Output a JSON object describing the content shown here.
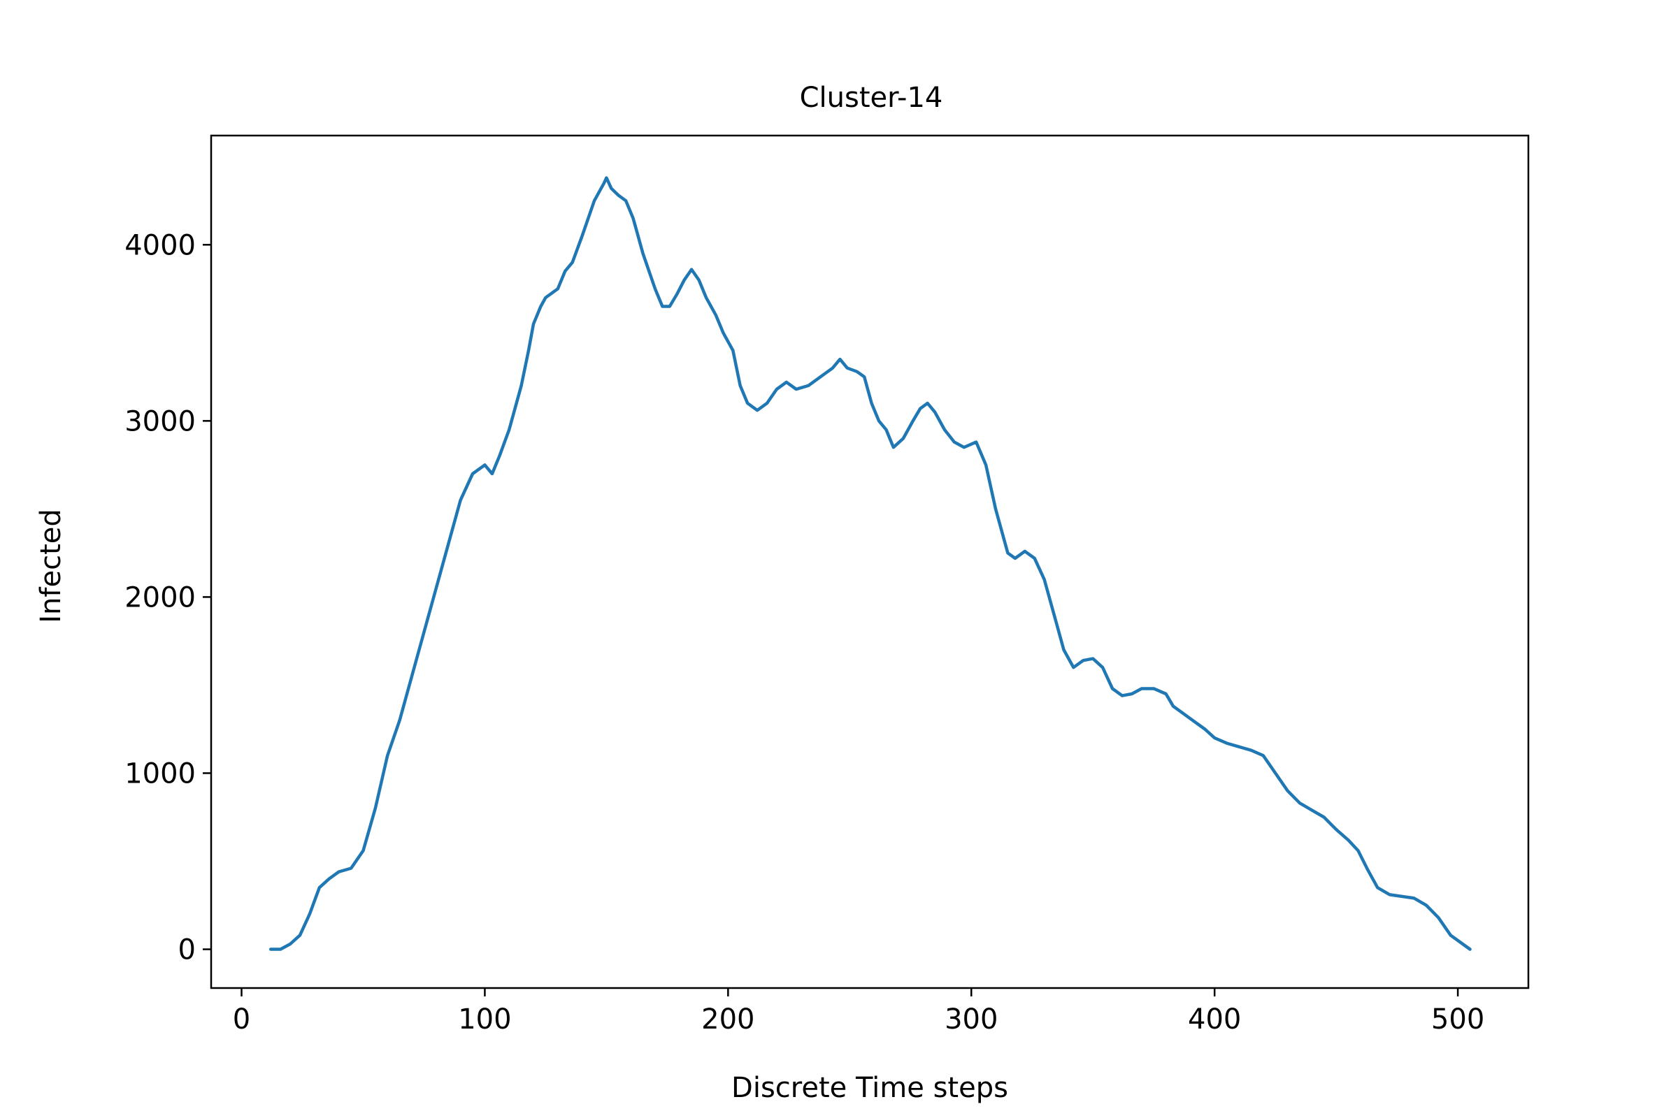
{
  "chart_data": {
    "type": "line",
    "title": "Cluster-14",
    "xlabel": "Discrete Time steps",
    "ylabel": "Infected",
    "xlim": [
      -12.5,
      529
    ],
    "ylim": [
      -220,
      4620
    ],
    "xticks": [
      0,
      100,
      200,
      300,
      400,
      500
    ],
    "yticks": [
      0,
      1000,
      2000,
      3000,
      4000
    ],
    "xtick_labels": [
      "0",
      "100",
      "200",
      "300",
      "400",
      "500"
    ],
    "ytick_labels": [
      "0",
      "1000",
      "2000",
      "3000",
      "4000"
    ],
    "grid": false,
    "legend": "none",
    "series": [
      {
        "color": "#1f77b4",
        "x": [
          12,
          16,
          20,
          24,
          28,
          32,
          36,
          40,
          45,
          50,
          55,
          60,
          65,
          70,
          75,
          80,
          85,
          90,
          95,
          100,
          103,
          106,
          110,
          115,
          118,
          120,
          123,
          125,
          130,
          133,
          136,
          140,
          145,
          149,
          150,
          152,
          155,
          158,
          161,
          165,
          170,
          173,
          176,
          179,
          182,
          185,
          188,
          191,
          195,
          198,
          202,
          205,
          208,
          212,
          216,
          220,
          224,
          228,
          233,
          238,
          243,
          246,
          249,
          253,
          256,
          259,
          262,
          265,
          268,
          272,
          276,
          279,
          282,
          285,
          289,
          293,
          297,
          302,
          306,
          310,
          315,
          318,
          322,
          326,
          330,
          334,
          338,
          342,
          346,
          350,
          354,
          358,
          362,
          366,
          370,
          375,
          380,
          383,
          387,
          391,
          396,
          400,
          405,
          410,
          415,
          420,
          425,
          430,
          435,
          440,
          445,
          450,
          455,
          459,
          463,
          467,
          472,
          477,
          482,
          487,
          492,
          497,
          502,
          505
        ],
        "y": [
          0,
          0,
          30,
          80,
          200,
          350,
          400,
          440,
          460,
          560,
          800,
          1100,
          1300,
          1550,
          1800,
          2050,
          2300,
          2550,
          2700,
          2750,
          2700,
          2800,
          2950,
          3200,
          3400,
          3550,
          3650,
          3700,
          3750,
          3850,
          3900,
          4050,
          4250,
          4350,
          4380,
          4320,
          4280,
          4250,
          4150,
          3950,
          3750,
          3650,
          3650,
          3720,
          3800,
          3860,
          3800,
          3700,
          3600,
          3500,
          3400,
          3200,
          3100,
          3060,
          3100,
          3180,
          3220,
          3180,
          3200,
          3250,
          3300,
          3350,
          3300,
          3280,
          3250,
          3100,
          3000,
          2950,
          2850,
          2900,
          3000,
          3070,
          3100,
          3050,
          2950,
          2880,
          2850,
          2880,
          2750,
          2500,
          2250,
          2220,
          2260,
          2220,
          2100,
          1900,
          1700,
          1600,
          1640,
          1650,
          1600,
          1480,
          1440,
          1450,
          1480,
          1480,
          1450,
          1380,
          1340,
          1300,
          1250,
          1200,
          1170,
          1150,
          1130,
          1100,
          1000,
          900,
          830,
          790,
          750,
          680,
          620,
          560,
          450,
          350,
          310,
          300,
          290,
          250,
          180,
          80,
          30,
          0
        ]
      }
    ]
  }
}
